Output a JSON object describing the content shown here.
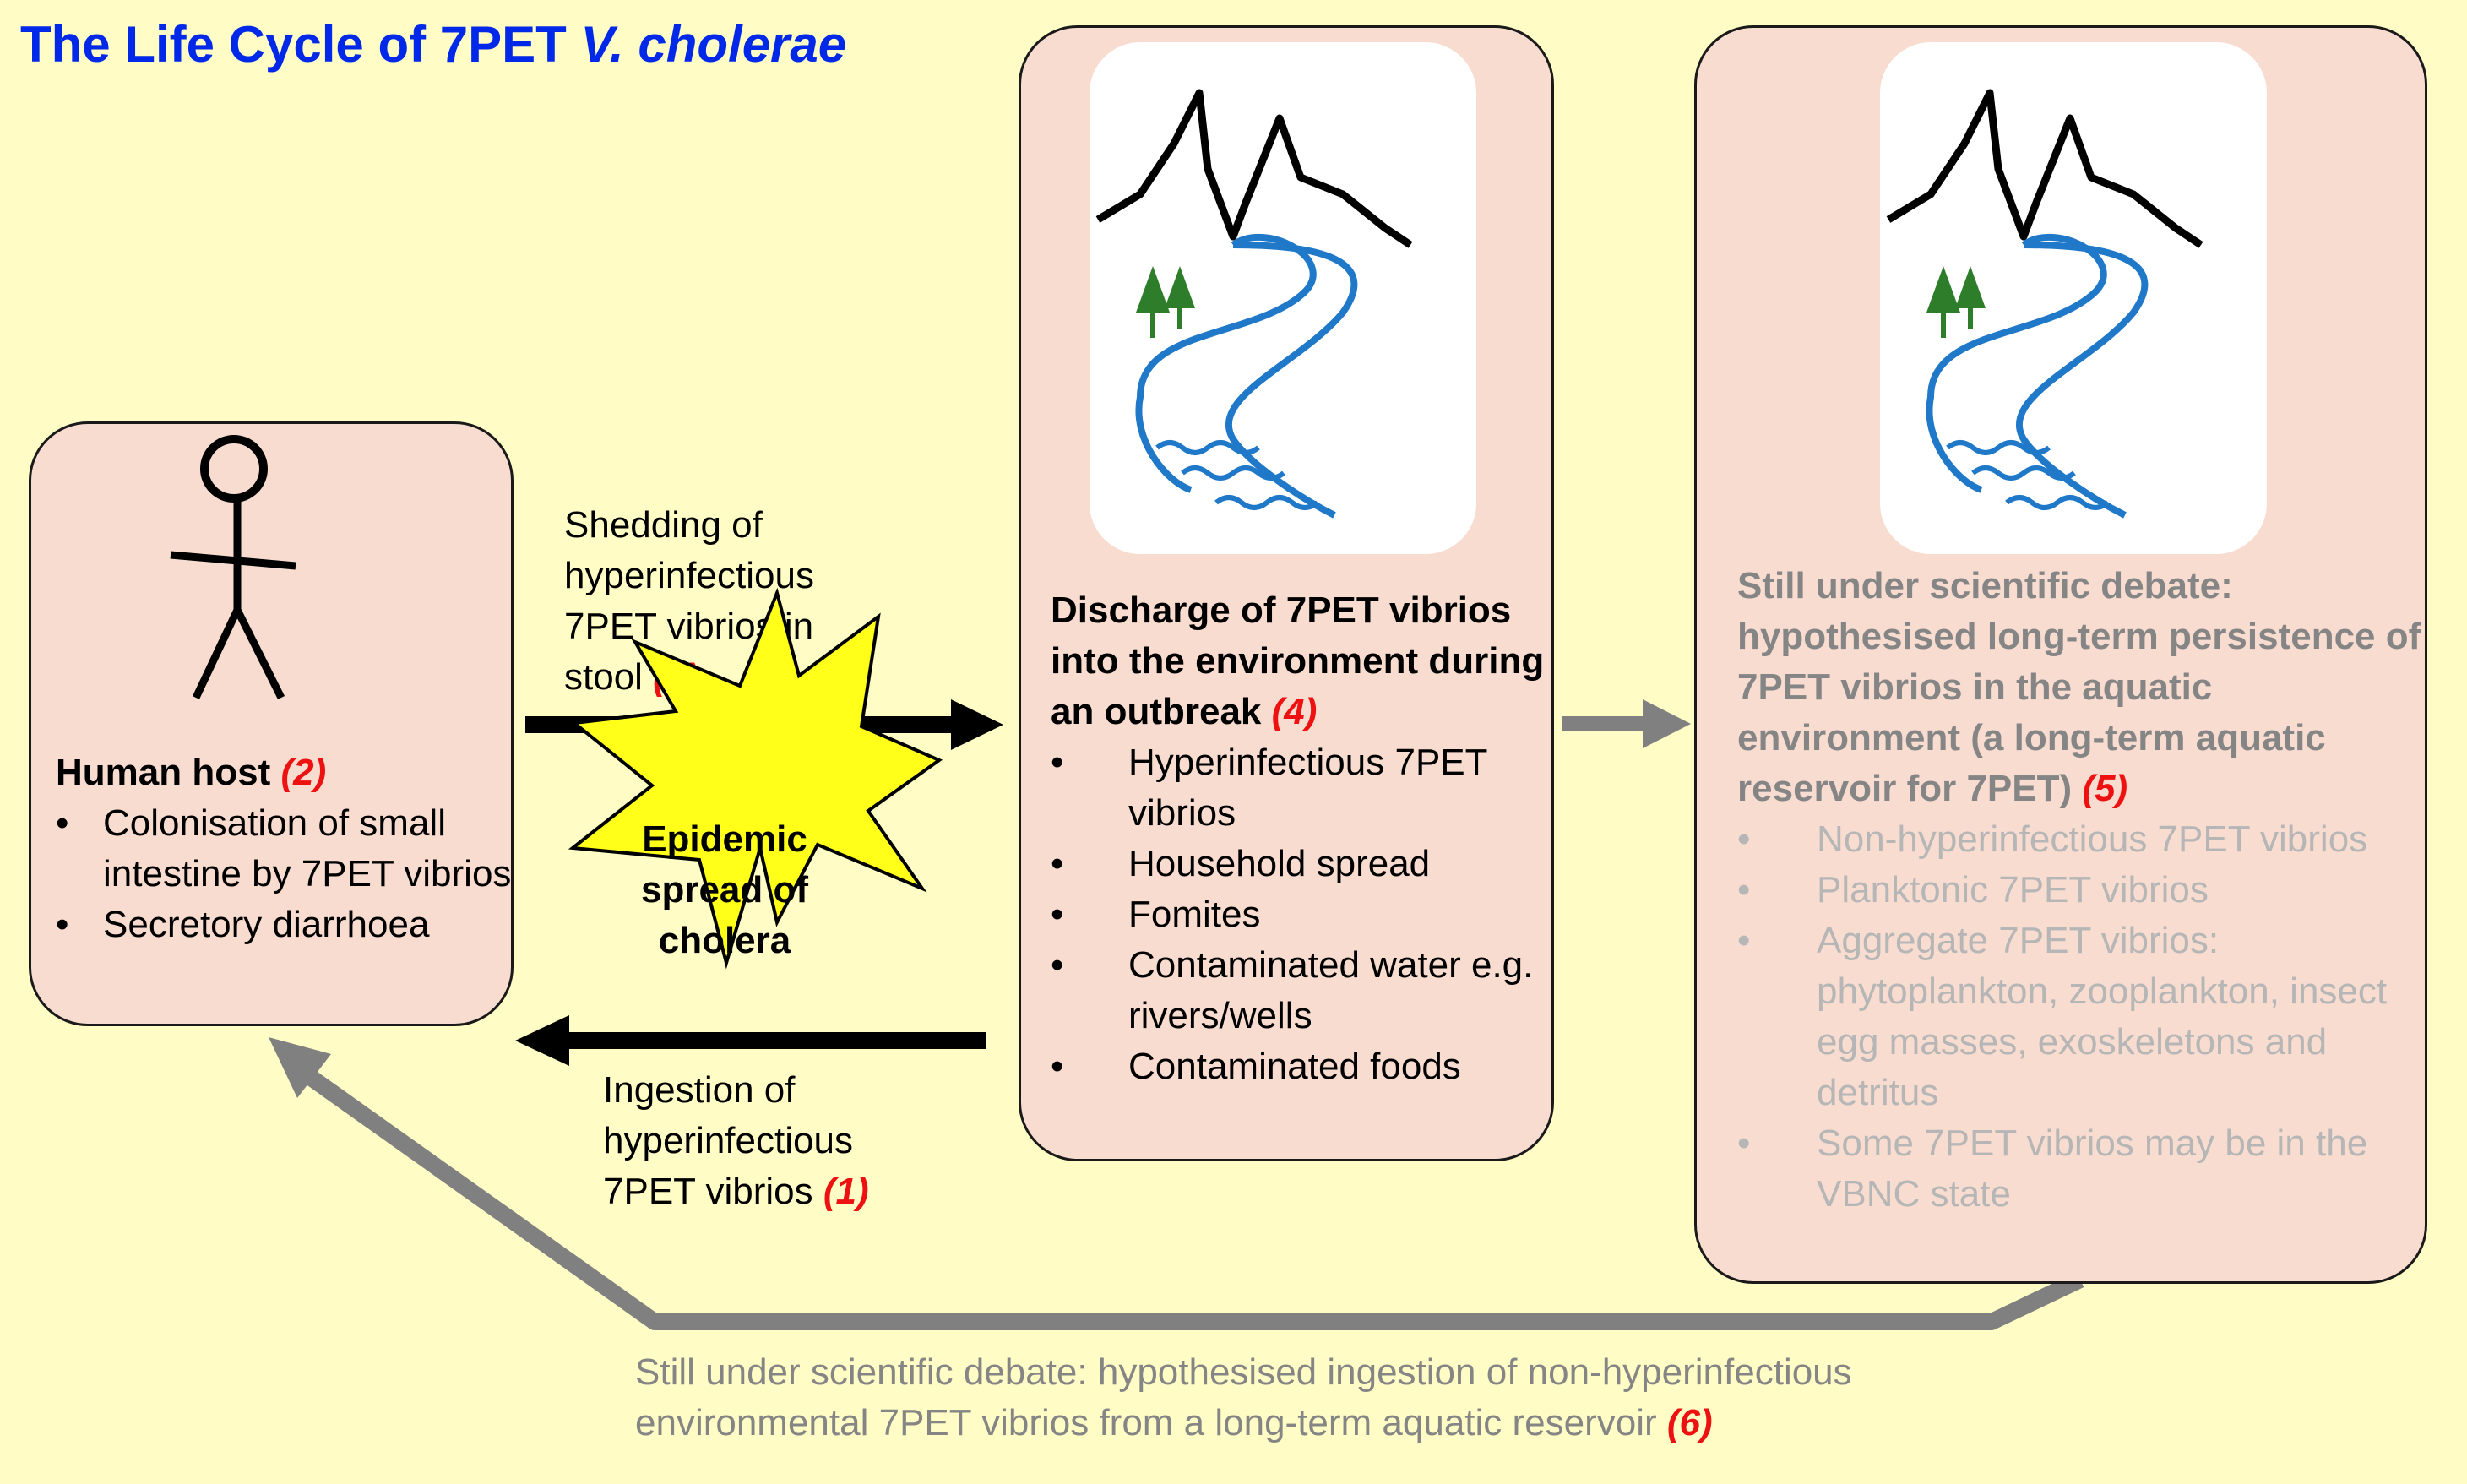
{
  "title": {
    "text": "The Life Cycle of 7PET ",
    "italic": "V. cholerae"
  },
  "human_host": {
    "heading": "Human host ",
    "num": "(2)",
    "items": [
      "Colonisation of small intestine by 7PET vibrios",
      "Secretory diarrhoea"
    ]
  },
  "shedding": {
    "text": "Shedding of hyperinfectious 7PET vibrios in stool ",
    "num": "(3)"
  },
  "ingestion": {
    "text": "Ingestion of hyperinfectious 7PET vibrios ",
    "num": "(1)"
  },
  "epidemic": {
    "line1": "Epidemic",
    "line2": "spread of",
    "line3": "cholera"
  },
  "discharge": {
    "heading": "Discharge of 7PET vibrios into the environment during an outbreak ",
    "num": "(4)",
    "items": [
      "Hyperinfectious 7PET vibrios",
      "Household spread",
      "Fomites",
      "Contaminated water e.g. rivers/wells",
      "Contaminated foods"
    ]
  },
  "reservoir": {
    "heading": "Still under scientific debate: hypothesised long-term persistence of 7PET vibrios in the aquatic environment (a long-term aquatic reservoir for 7PET) ",
    "num": "(5)",
    "items": [
      "Non-hyperinfectious 7PET vibrios",
      "Planktonic 7PET vibrios",
      "Aggregate 7PET vibrios: phytoplankton, zooplankton, insect egg masses, exoskeletons and detritus",
      "Some 7PET vibrios may be in the VBNC state"
    ]
  },
  "bottom_note": {
    "text": "Still under scientific debate: hypothesised ingestion of non-hyperinfectious environmental 7PET vibrios from a long-term aquatic reservoir ",
    "num": "(6)"
  },
  "colors": {
    "title": "#0028e8",
    "box_fill": "#f8dcd0",
    "background": "#fffdc5",
    "num": "#ee1111",
    "star": "#ffff1a",
    "river": "#1f78c8",
    "tree": "#2e7d2a"
  }
}
